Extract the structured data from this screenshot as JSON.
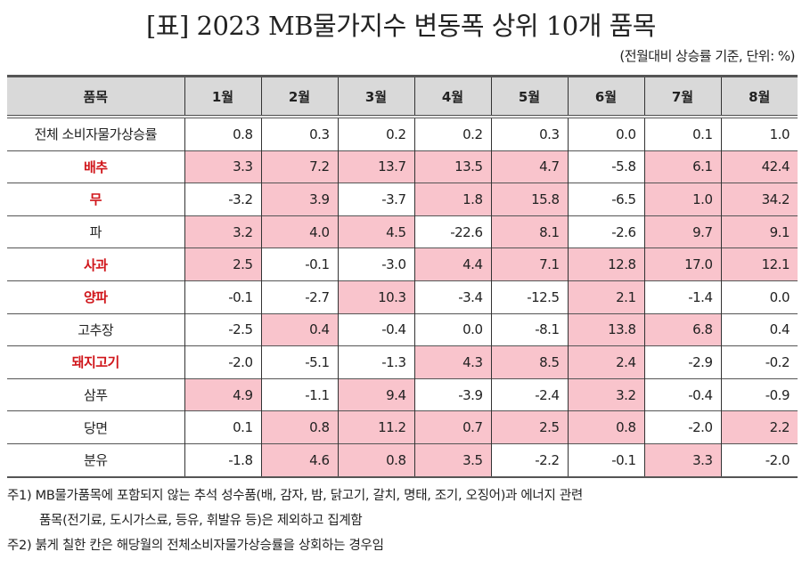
{
  "title": "[표] 2023 MB물가지수 변동폭 상위 10개 품목",
  "unit_note": "(전월대비 상승률 기준, 단위: %)",
  "highlight_color": "#f9c4cc",
  "emphasis_color": "#d0161b",
  "table": {
    "headers": [
      "품목",
      "1월",
      "2월",
      "3월",
      "4월",
      "5월",
      "6월",
      "7월",
      "8월"
    ],
    "baseline_row": {
      "label": "전체 소비자물가상승률",
      "values": [
        "0.8",
        "0.3",
        "0.2",
        "0.2",
        "0.3",
        "0.0",
        "0.1",
        "1.0"
      ]
    },
    "rows": [
      {
        "label": "배추",
        "emphasis": true,
        "values": [
          "3.3",
          "7.2",
          "13.7",
          "13.5",
          "4.7",
          "-5.8",
          "6.1",
          "42.4"
        ]
      },
      {
        "label": "무",
        "emphasis": true,
        "values": [
          "-3.2",
          "3.9",
          "-3.7",
          "1.8",
          "15.8",
          "-6.5",
          "1.0",
          "34.2"
        ]
      },
      {
        "label": "파",
        "emphasis": false,
        "values": [
          "3.2",
          "4.0",
          "4.5",
          "-22.6",
          "8.1",
          "-2.6",
          "9.7",
          "9.1"
        ]
      },
      {
        "label": "사과",
        "emphasis": true,
        "values": [
          "2.5",
          "-0.1",
          "-3.0",
          "4.4",
          "7.1",
          "12.8",
          "17.0",
          "12.1"
        ]
      },
      {
        "label": "양파",
        "emphasis": true,
        "values": [
          "-0.1",
          "-2.7",
          "10.3",
          "-3.4",
          "-12.5",
          "2.1",
          "-1.4",
          "0.0"
        ]
      },
      {
        "label": "고추장",
        "emphasis": false,
        "values": [
          "-2.5",
          "0.4",
          "-0.4",
          "0.0",
          "-8.1",
          "13.8",
          "6.8",
          "0.4"
        ]
      },
      {
        "label": "돼지고기",
        "emphasis": true,
        "values": [
          "-2.0",
          "-5.1",
          "-1.3",
          "4.3",
          "8.5",
          "2.4",
          "-2.9",
          "-0.2"
        ]
      },
      {
        "label": "삼푸",
        "emphasis": false,
        "values": [
          "4.9",
          "-1.1",
          "9.4",
          "-3.9",
          "-2.4",
          "3.2",
          "-0.4",
          "-0.9"
        ]
      },
      {
        "label": "당면",
        "emphasis": false,
        "values": [
          "0.1",
          "0.8",
          "11.2",
          "0.7",
          "2.5",
          "0.8",
          "-2.0",
          "2.2"
        ]
      },
      {
        "label": "분유",
        "emphasis": false,
        "values": [
          "-1.8",
          "4.6",
          "0.8",
          "3.5",
          "-2.2",
          "-0.1",
          "3.3",
          "-2.0"
        ]
      }
    ]
  },
  "notes": {
    "note1_line1": "주1) MB물가품목에 포함되지 않는 추석 성수품(배, 감자, 밤, 닭고기, 갈치, 명태, 조기, 오징어)과 에너지 관련",
    "note1_line2": "품목(전기료, 도시가스료, 등유, 휘발유 등)은 제외하고 집계함",
    "note2": "주2) 붉게 칠한 칸은 해당월의 전체소비자물가상승률을 상회하는 경우임"
  }
}
